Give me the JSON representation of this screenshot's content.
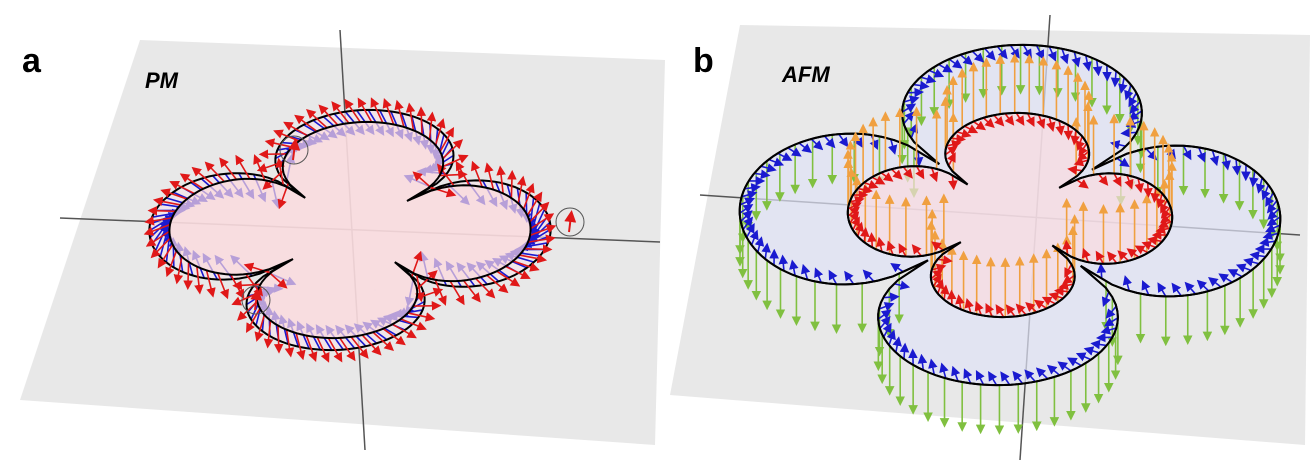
{
  "panels": [
    {
      "label": "a",
      "title": "PM"
    },
    {
      "label": "b",
      "title": "AFM"
    }
  ]
}
